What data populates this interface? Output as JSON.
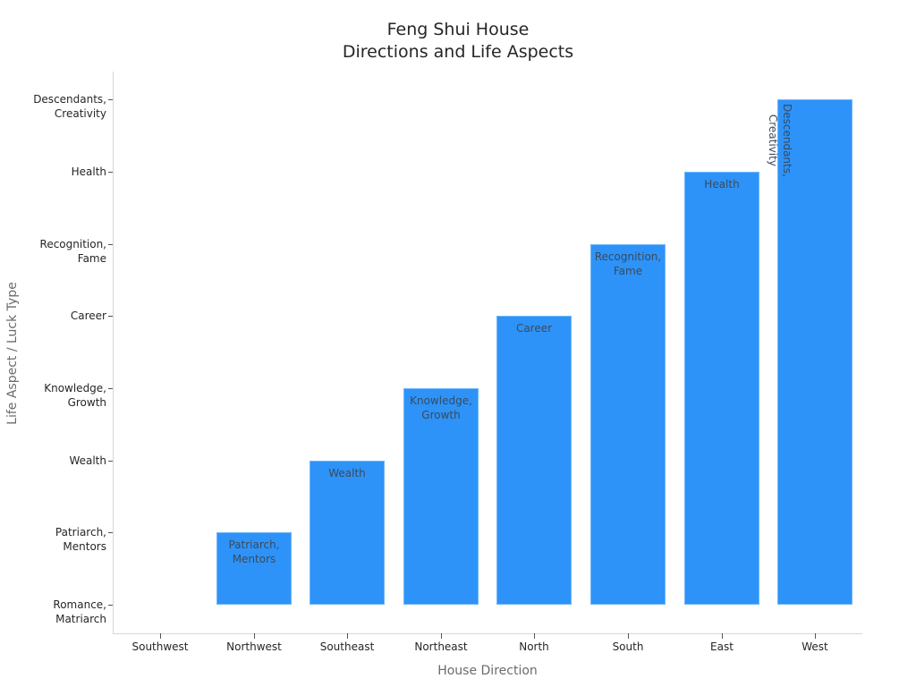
{
  "chart_data": {
    "type": "bar",
    "title": "Feng Shui House\nDirections and Life Aspects",
    "title_lines": [
      "Feng Shui House",
      "Directions and Life Aspects"
    ],
    "xlabel": "House Direction",
    "ylabel": "Life Aspect / Luck Type",
    "categories": [
      "Southwest",
      "Northwest",
      "Southeast",
      "Northeast",
      "North",
      "South",
      "East",
      "West"
    ],
    "values": [
      0,
      1,
      2,
      3,
      4,
      5,
      6,
      7
    ],
    "bar_labels": [
      "Romance,\nMatriarch",
      "Patriarch,\nMentors",
      "Wealth",
      "Knowledge,\nGrowth",
      "Career",
      "Recognition,\nFame",
      "Health",
      "Descendants,\nCreativity"
    ],
    "y_tick_labels": [
      "Romance,\nMatriarch",
      "Patriarch,\nMentors",
      "Wealth",
      "Knowledge,\nGrowth",
      "Career",
      "Recognition,\nFame",
      "Health",
      "Descendants,\nCreativity"
    ],
    "ylim": [
      0,
      7
    ],
    "grid": false,
    "legend": "none",
    "bar_color": "#2e93f8"
  }
}
